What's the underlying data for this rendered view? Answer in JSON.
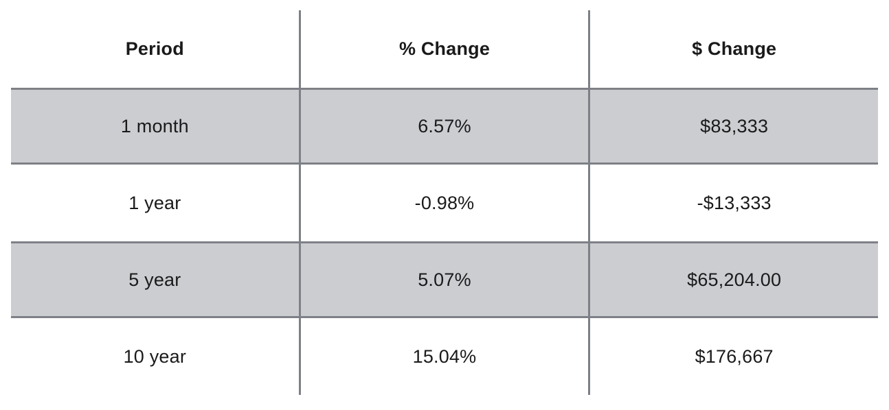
{
  "chart_data": {
    "type": "table",
    "columns": [
      "Period",
      "% Change",
      "$ Change"
    ],
    "rows": [
      [
        "1 month",
        "6.57%",
        "$83,333"
      ],
      [
        "1 year",
        "-0.98%",
        "-$13,333"
      ],
      [
        "5 year",
        "5.07%",
        "$65,204.00"
      ],
      [
        "10 year",
        "15.04%",
        "$176,667"
      ]
    ]
  },
  "colors": {
    "row_stripe": "#cccdd1",
    "grid_line": "#7d8086",
    "text": "#1a1a1a",
    "background": "#ffffff"
  }
}
